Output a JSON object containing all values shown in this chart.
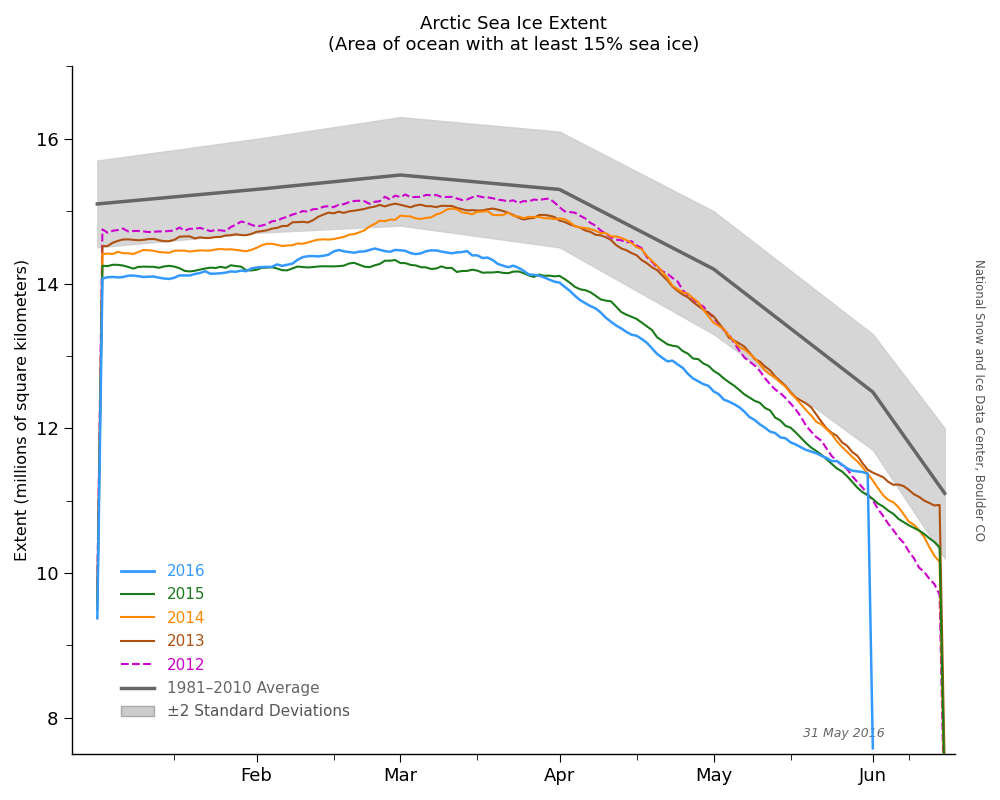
{
  "title": "Arctic Sea Ice Extent",
  "subtitle": "(Area of ocean with at least 15% sea ice)",
  "ylabel": "Extent (millions of square kilometers)",
  "watermark": "31 May 2016",
  "side_label": "National Snow and Ice Data Center, Boulder CO",
  "ylim": [
    7.5,
    17.0
  ],
  "yticks": [
    8,
    10,
    12,
    14,
    16
  ],
  "colors": {
    "2016": "#3399ff",
    "2015": "#1a7a1a",
    "2014": "#ff8800",
    "2013": "#b05010",
    "2012": "#cc00cc",
    "avg": "#666666",
    "shade": "#cccccc"
  },
  "background": "#ffffff"
}
